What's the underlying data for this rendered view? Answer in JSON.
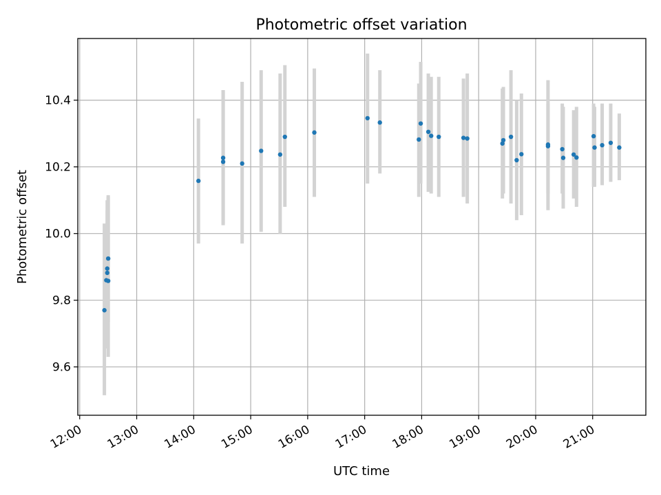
{
  "chart_data": {
    "type": "scatter",
    "title": "Photometric offset variation",
    "xlabel": "UTC time",
    "ylabel": "Photometric offset",
    "x_tick_labels": [
      "12:00",
      "13:00",
      "14:00",
      "15:00",
      "16:00",
      "17:00",
      "18:00",
      "19:00",
      "20:00",
      "21:00"
    ],
    "y_ticks": [
      9.6,
      9.8,
      10.0,
      10.2,
      10.4
    ],
    "xlim": [
      "11:58",
      "21:56"
    ],
    "ylim": [
      9.455,
      10.585
    ],
    "grid": true,
    "colors": {
      "point": "#1f77b4",
      "errorbar": "#d3d3d3"
    },
    "points": [
      {
        "x": "12:26",
        "y": 9.77,
        "lo": 9.515,
        "hi": 10.03
      },
      {
        "x": "12:28",
        "y": 9.86,
        "lo": 9.655,
        "hi": 10.025
      },
      {
        "x": "12:29",
        "y": 9.882,
        "lo": 9.7,
        "hi": 10.1
      },
      {
        "x": "12:29",
        "y": 9.895,
        "lo": 9.72,
        "hi": 10.07
      },
      {
        "x": "12:30",
        "y": 9.858,
        "lo": 9.63,
        "hi": 10.115
      },
      {
        "x": "12:30",
        "y": 9.925,
        "lo": 9.735,
        "hi": 10.11
      },
      {
        "x": "14:05",
        "y": 10.158,
        "lo": 9.97,
        "hi": 10.345
      },
      {
        "x": "14:31",
        "y": 10.215,
        "lo": 10.025,
        "hi": 10.43
      },
      {
        "x": "14:31",
        "y": 10.227,
        "lo": 10.03,
        "hi": 10.43
      },
      {
        "x": "14:51",
        "y": 10.21,
        "lo": 9.97,
        "hi": 10.455
      },
      {
        "x": "15:11",
        "y": 10.248,
        "lo": 10.005,
        "hi": 10.49
      },
      {
        "x": "15:31",
        "y": 10.237,
        "lo": 10.0,
        "hi": 10.48
      },
      {
        "x": "15:36",
        "y": 10.29,
        "lo": 10.08,
        "hi": 10.505
      },
      {
        "x": "16:07",
        "y": 10.303,
        "lo": 10.11,
        "hi": 10.495
      },
      {
        "x": "17:03",
        "y": 10.346,
        "lo": 10.15,
        "hi": 10.54
      },
      {
        "x": "17:16",
        "y": 10.333,
        "lo": 10.18,
        "hi": 10.49
      },
      {
        "x": "17:57",
        "y": 10.282,
        "lo": 10.11,
        "hi": 10.45
      },
      {
        "x": "17:59",
        "y": 10.33,
        "lo": 10.15,
        "hi": 10.515
      },
      {
        "x": "18:07",
        "y": 10.305,
        "lo": 10.125,
        "hi": 10.48
      },
      {
        "x": "18:10",
        "y": 10.293,
        "lo": 10.12,
        "hi": 10.47
      },
      {
        "x": "18:18",
        "y": 10.29,
        "lo": 10.11,
        "hi": 10.47
      },
      {
        "x": "18:44",
        "y": 10.287,
        "lo": 10.11,
        "hi": 10.465
      },
      {
        "x": "18:48",
        "y": 10.285,
        "lo": 10.09,
        "hi": 10.48
      },
      {
        "x": "19:25",
        "y": 10.27,
        "lo": 10.105,
        "hi": 10.435
      },
      {
        "x": "19:26",
        "y": 10.28,
        "lo": 10.12,
        "hi": 10.44
      },
      {
        "x": "19:34",
        "y": 10.29,
        "lo": 10.09,
        "hi": 10.49
      },
      {
        "x": "19:40",
        "y": 10.22,
        "lo": 10.04,
        "hi": 10.4
      },
      {
        "x": "19:45",
        "y": 10.238,
        "lo": 10.055,
        "hi": 10.42
      },
      {
        "x": "20:13",
        "y": 10.262,
        "lo": 10.07,
        "hi": 10.46
      },
      {
        "x": "20:13",
        "y": 10.267,
        "lo": 10.12,
        "hi": 10.39
      },
      {
        "x": "20:28",
        "y": 10.253,
        "lo": 10.12,
        "hi": 10.39
      },
      {
        "x": "20:29",
        "y": 10.227,
        "lo": 10.075,
        "hi": 10.38
      },
      {
        "x": "20:40",
        "y": 10.237,
        "lo": 10.105,
        "hi": 10.37
      },
      {
        "x": "20:43",
        "y": 10.228,
        "lo": 10.08,
        "hi": 10.38
      },
      {
        "x": "21:01",
        "y": 10.292,
        "lo": 10.14,
        "hi": 10.39
      },
      {
        "x": "21:02",
        "y": 10.258,
        "lo": 10.14,
        "hi": 10.38
      },
      {
        "x": "21:10",
        "y": 10.265,
        "lo": 10.145,
        "hi": 10.39
      },
      {
        "x": "21:19",
        "y": 10.272,
        "lo": 10.155,
        "hi": 10.39
      },
      {
        "x": "21:28",
        "y": 10.258,
        "lo": 10.16,
        "hi": 10.36
      }
    ]
  }
}
